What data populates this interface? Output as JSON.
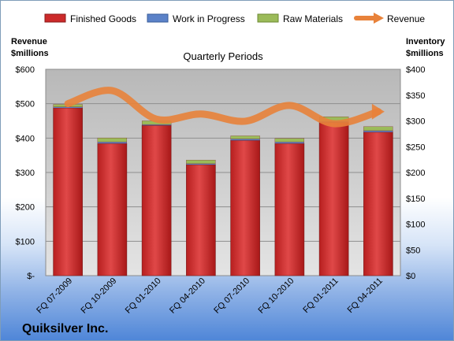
{
  "chart_data": {
    "type": "bar",
    "title": "Quarterly Periods",
    "company": "Quiksilver Inc.",
    "categories": [
      "FQ 07-2009",
      "FQ 10-2009",
      "FQ 01-2010",
      "FQ 04-2010",
      "FQ 07-2010",
      "FQ 10-2010",
      "FQ 01-2011",
      "FQ 04-2011"
    ],
    "stacked": true,
    "series": [
      {
        "name": "Finished Goods",
        "axis": "right",
        "color": "#cc2a2a",
        "values": [
          325,
          256,
          291,
          215,
          262,
          256,
          297,
          278
        ]
      },
      {
        "name": "Work in Progress",
        "axis": "right",
        "color": "#5b82c8",
        "values": [
          2,
          3,
          2,
          2,
          3,
          3,
          2,
          3
        ]
      },
      {
        "name": "Raw Materials",
        "axis": "right",
        "color": "#9bbb59",
        "values": [
          5,
          8,
          7,
          7,
          6,
          7,
          9,
          8
        ]
      },
      {
        "name": "Revenue",
        "type": "line",
        "axis": "left",
        "color": "#e8823a",
        "values": [
          500,
          538,
          455,
          470,
          449,
          495,
          442,
          477
        ]
      }
    ],
    "left_axis": {
      "label_line1": "Revenue",
      "label_line2": "$millions",
      "ylim": [
        0,
        600
      ],
      "ticks": [
        "$-",
        "$100",
        "$200",
        "$300",
        "$400",
        "$500",
        "$600"
      ]
    },
    "right_axis": {
      "label_line1": "Inventory",
      "label_line2": "$millions",
      "ylim": [
        0,
        400
      ],
      "ticks": [
        "$0",
        "$50",
        "$100",
        "$150",
        "$200",
        "$250",
        "$300",
        "$350",
        "$400"
      ]
    },
    "grid": true,
    "legend_position": "top"
  }
}
